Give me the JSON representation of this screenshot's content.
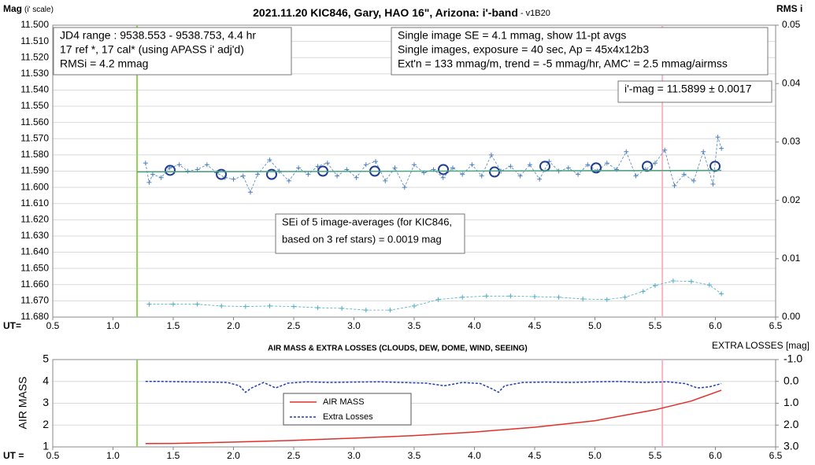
{
  "chart_data": [
    {
      "type": "line",
      "title": "2021.11.20 KIC846, Gary, HAO 16\", Arizona: i'-band",
      "subtitle": " - v1B20",
      "ylabel": "Mag",
      "ylabel_note": "(i' scale)",
      "y2label": "RMS i",
      "xlabel": "UT=",
      "xlim": [
        0.5,
        6.5
      ],
      "xticks": [
        0.5,
        {
          "value": 1,
          "label": "1.0"
        },
        1.5,
        {
          "value": 2,
          "label": "2.0"
        },
        2.5,
        {
          "value": 3,
          "label": "3.0"
        },
        3.5,
        {
          "value": 4,
          "label": "4.0"
        },
        4.5,
        {
          "value": 5,
          "label": "5.0"
        },
        5.5,
        {
          "value": 6,
          "label": "6.0"
        },
        6.5
      ],
      "ylim": [
        11.68,
        11.5
      ],
      "yticks": [
        {
          "value": 11.5,
          "label": "11.500"
        },
        {
          "value": 11.51,
          "label": "11.510"
        },
        {
          "value": 11.52,
          "label": "11.520"
        },
        {
          "value": 11.53,
          "label": "11.530"
        },
        {
          "value": 11.54,
          "label": "11.540"
        },
        {
          "value": 11.55,
          "label": "11.550"
        },
        {
          "value": 11.56,
          "label": "11.560"
        },
        {
          "value": 11.57,
          "label": "11.570"
        },
        {
          "value": 11.58,
          "label": "11.580"
        },
        {
          "value": 11.59,
          "label": "11.590"
        },
        {
          "value": 11.6,
          "label": "11.600"
        },
        {
          "value": 11.61,
          "label": "11.610"
        },
        {
          "value": 11.62,
          "label": "11.620"
        },
        {
          "value": 11.63,
          "label": "11.630"
        },
        {
          "value": 11.64,
          "label": "11.640"
        },
        {
          "value": 11.65,
          "label": "11.650"
        },
        {
          "value": 11.66,
          "label": "11.660"
        },
        {
          "value": 11.67,
          "label": "11.670"
        },
        {
          "value": 11.68,
          "label": "11.680"
        }
      ],
      "y2lim": [
        0,
        0.05
      ],
      "y2ticks": [
        {
          "value": 0,
          "label": "0.00"
        },
        {
          "value": 0.01,
          "label": "0.01"
        },
        {
          "value": 0.02,
          "label": "0.02"
        },
        {
          "value": 0.03,
          "label": "0.03"
        },
        {
          "value": 0.04,
          "label": "0.04"
        },
        {
          "value": 0.05,
          "label": "0.05"
        }
      ],
      "grid": true,
      "vlines": [
        {
          "x": 1.2,
          "color": "#92d050"
        },
        {
          "x": 5.56,
          "color": "#f4b6c2"
        }
      ],
      "series": [
        {
          "color": "#4f81bd",
          "marker": "plus",
          "dash": true,
          "x": [
            1.27,
            1.3,
            1.33,
            1.4,
            1.47,
            1.55,
            1.62,
            1.7,
            1.78,
            1.86,
            1.93,
            2.0,
            2.08,
            2.14,
            2.2,
            2.3,
            2.38,
            2.46,
            2.54,
            2.62,
            2.7,
            2.78,
            2.86,
            2.94,
            3.02,
            3.1,
            3.18,
            3.26,
            3.34,
            3.42,
            3.5,
            3.58,
            3.66,
            3.74,
            3.82,
            3.9,
            3.98,
            4.06,
            4.14,
            4.22,
            4.3,
            4.38,
            4.46,
            4.54,
            4.62,
            4.7,
            4.78,
            4.86,
            4.94,
            5.02,
            5.1,
            5.18,
            5.26,
            5.34,
            5.42,
            5.5,
            5.58,
            5.66,
            5.74,
            5.82,
            5.9,
            5.98,
            6.02,
            6.05
          ],
          "values": [
            11.585,
            11.597,
            11.592,
            11.594,
            11.588,
            11.586,
            11.59,
            11.589,
            11.586,
            11.591,
            11.594,
            11.595,
            11.593,
            11.603,
            11.592,
            11.583,
            11.59,
            11.596,
            11.588,
            11.592,
            11.587,
            11.585,
            11.593,
            11.589,
            11.594,
            11.586,
            11.584,
            11.596,
            11.588,
            11.6,
            11.586,
            11.591,
            11.589,
            11.594,
            11.588,
            11.592,
            11.586,
            11.593,
            11.58,
            11.59,
            11.587,
            11.593,
            11.586,
            11.595,
            11.584,
            11.59,
            11.588,
            11.592,
            11.586,
            11.59,
            11.585,
            11.589,
            11.578,
            11.593,
            11.589,
            11.585,
            11.577,
            11.599,
            11.592,
            11.596,
            11.578,
            11.598,
            11.569,
            11.576
          ]
        },
        {
          "color": "#1f3e93",
          "marker": "circle",
          "dash": false,
          "x": [
            1.474,
            1.899,
            2.317,
            2.742,
            3.173,
            3.742,
            4.167,
            4.585,
            5.01,
            5.435,
            5.997
          ],
          "values": [
            11.5895,
            11.592,
            11.592,
            11.59,
            11.59,
            11.589,
            11.5905,
            11.587,
            11.588,
            11.587,
            11.587
          ]
        },
        {
          "color": "#4aa57f",
          "marker": "none",
          "dash": false,
          "x": [
            1.2,
            6.05
          ],
          "values": [
            11.5905,
            11.5895
          ]
        },
        {
          "color": "#4bacc6",
          "marker": "plus",
          "dash": true,
          "axis": "y2",
          "x": [
            1.3,
            1.5,
            1.7,
            1.9,
            2.1,
            2.3,
            2.5,
            2.7,
            2.9,
            3.1,
            3.3,
            3.5,
            3.7,
            3.9,
            4.1,
            4.3,
            4.5,
            4.7,
            4.9,
            5.1,
            5.25,
            5.4,
            5.5,
            5.65,
            5.8,
            5.95,
            6.05
          ],
          "values": [
            0.0022,
            0.0022,
            0.0022,
            0.0019,
            0.0018,
            0.0019,
            0.0018,
            0.0016,
            0.0015,
            0.0012,
            0.0012,
            0.0019,
            0.003,
            0.0034,
            0.0036,
            0.0036,
            0.0035,
            0.0034,
            0.0031,
            0.003,
            0.0034,
            0.0044,
            0.0054,
            0.0062,
            0.0061,
            0.0055,
            0.004
          ]
        }
      ],
      "annotations": [
        {
          "lines": [
            "JD4 range : 9538.553 - 9538.753, 4.4  hr",
            "17 ref *, 17 cal* (using APASS i' adj'd)",
            "RMSi = 4.2 mmag"
          ]
        },
        {
          "lines": [
            "Single image SE = 4.1 mmag, show 11-pt avgs",
            "Single images, exposure = 40 sec, Ap = 45x4x12b3",
            "Ext'n = 133 mmag/m, trend = -5 mmag/hr, AMC' = 2.5 mmag/airmss"
          ]
        },
        {
          "lines": [
            "i'-mag = 11.5899 ± 0.0017"
          ]
        },
        {
          "lines": [
            "SEi of 5 image-averages (for KIC846,",
            "based on 3 ref stars) = 0.0019 mag"
          ]
        }
      ]
    },
    {
      "type": "line",
      "title": "AIR MASS & EXTRA LOSSES (CLOUDS, DEW, DOME, WIND, SEEING)",
      "ylabel": "AIR MASS",
      "y2label": "EXTRA LOSSES [mag]",
      "xlabel": "UT =",
      "xlim": [
        0.5,
        6.5
      ],
      "xticks": [
        0.5,
        {
          "value": 1,
          "label": "1.0"
        },
        1.5,
        {
          "value": 2,
          "label": "2.0"
        },
        2.5,
        {
          "value": 3,
          "label": "3.0"
        },
        3.5,
        {
          "value": 4,
          "label": "4.0"
        },
        4.5,
        {
          "value": 5,
          "label": "5.0"
        },
        5.5,
        {
          "value": 6,
          "label": "6.0"
        },
        6.5
      ],
      "ylim": [
        1,
        5
      ],
      "yticks": [
        1,
        2,
        3,
        4,
        5
      ],
      "y2lim": [
        3,
        -1
      ],
      "y2ticks": [
        {
          "value": -1,
          "label": "-1.0"
        },
        {
          "value": 0,
          "label": "0.0"
        },
        {
          "value": 1,
          "label": "1.0"
        },
        {
          "value": 2,
          "label": "2.0"
        },
        {
          "value": 3,
          "label": "3.0"
        }
      ],
      "grid": true,
      "vlines": [
        {
          "x": 1.2,
          "color": "#92d050"
        },
        {
          "x": 5.56,
          "color": "#f4b6c2"
        }
      ],
      "series": [
        {
          "name": "AIR MASS",
          "color": "#e0302a",
          "marker": "none",
          "dash": false,
          "x": [
            1.27,
            1.5,
            2.0,
            2.5,
            3.0,
            3.5,
            4.0,
            4.5,
            5.0,
            5.5,
            5.8,
            6.05
          ],
          "values": [
            1.15,
            1.16,
            1.22,
            1.3,
            1.4,
            1.52,
            1.68,
            1.9,
            2.2,
            2.7,
            3.1,
            3.6
          ]
        },
        {
          "name": "Extra Losses",
          "color": "#1f3eb0",
          "marker": "none",
          "dash": true,
          "axis": "y2",
          "x": [
            1.27,
            1.4,
            1.6,
            1.8,
            1.95,
            2.05,
            2.1,
            2.15,
            2.25,
            2.35,
            2.45,
            2.6,
            2.8,
            3.0,
            3.2,
            3.4,
            3.6,
            3.75,
            3.9,
            4.05,
            4.15,
            4.2,
            4.25,
            4.4,
            4.6,
            4.8,
            5.0,
            5.2,
            5.4,
            5.6,
            5.75,
            5.85,
            5.95,
            6.05
          ],
          "values": [
            0.0,
            0.0,
            0.02,
            0.03,
            0.05,
            0.2,
            0.5,
            0.3,
            0.05,
            0.3,
            0.08,
            0.02,
            0.05,
            0.03,
            0.02,
            0.05,
            0.08,
            0.2,
            0.05,
            0.1,
            0.35,
            0.5,
            0.2,
            0.05,
            0.03,
            0.05,
            0.02,
            0.0,
            0.05,
            0.02,
            0.1,
            0.3,
            0.25,
            0.1
          ]
        }
      ],
      "legend": "center"
    }
  ]
}
